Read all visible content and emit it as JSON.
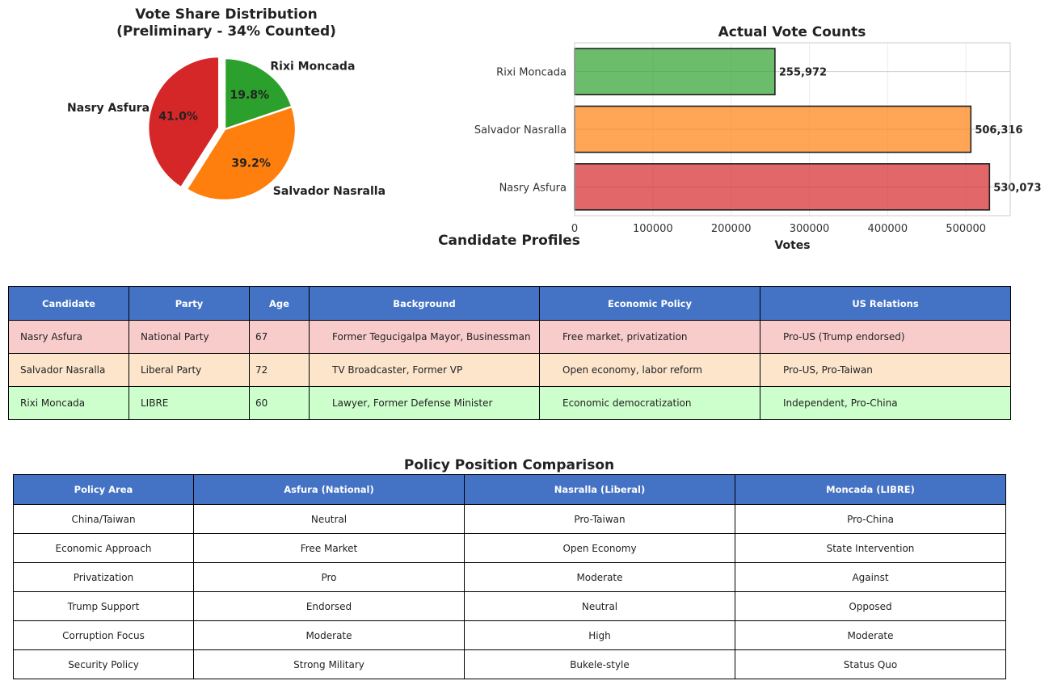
{
  "chart_data": [
    {
      "type": "pie",
      "title": "Vote Share Distribution\n(Preliminary - 34% Counted)",
      "title_lines": [
        "Vote Share Distribution",
        "(Preliminary - 34% Counted)"
      ],
      "labels": [
        "Nasry Asfura",
        "Salvador Nasralla",
        "Rixi Moncada"
      ],
      "values": [
        41.0,
        39.2,
        19.8
      ],
      "value_labels": [
        "41.0%",
        "39.2%",
        "19.8%"
      ],
      "colors": [
        "#d62728",
        "#ff7f0e",
        "#2ca02c"
      ],
      "exploded": [
        "Nasry Asfura"
      ],
      "start_angle": 90
    },
    {
      "type": "bar",
      "orientation": "horizontal",
      "title": "Actual Vote Counts",
      "xlabel": "Votes",
      "ylabel": "",
      "categories": [
        "Nasry Asfura",
        "Salvador Nasralla",
        "Rixi Moncada"
      ],
      "values": [
        530073,
        506316,
        255972
      ],
      "value_labels": [
        "530,073",
        "506,316",
        "255,972"
      ],
      "colors": [
        "#d62728",
        "#ff7f0e",
        "#2ca02c"
      ],
      "xlim": [
        0,
        556577
      ],
      "xticks": [
        0,
        100000,
        200000,
        300000,
        400000,
        500000
      ],
      "xtick_labels": [
        "0",
        "100000",
        "200000",
        "300000",
        "400000",
        "500000"
      ],
      "grid": true
    }
  ],
  "profiles": {
    "title": "Candidate Profiles",
    "header_color": "#4472c4",
    "columns": [
      "Candidate",
      "Party",
      "Age",
      "Background",
      "Economic Policy",
      "US Relations"
    ],
    "row_colors": [
      "#f9cccc",
      "#fde5cc",
      "#ccffcc"
    ],
    "rows": [
      [
        "Nasry Asfura",
        "National Party",
        "67",
        "Former Tegucigalpa Mayor, Businessman",
        "Free market, privatization",
        "Pro-US (Trump endorsed)"
      ],
      [
        "Salvador Nasralla",
        "Liberal Party",
        "72",
        "TV Broadcaster, Former VP",
        "Open economy, labor reform",
        "Pro-US, Pro-Taiwan"
      ],
      [
        "Rixi Moncada",
        "LIBRE",
        "60",
        "Lawyer, Former Defense Minister",
        "Economic democratization",
        "Independent, Pro-China"
      ]
    ]
  },
  "policy": {
    "title": "Policy Position Comparison",
    "columns": [
      "Policy Area",
      "Asfura (National)",
      "Nasralla (Liberal)",
      "Moncada (LIBRE)"
    ],
    "rows": [
      [
        "China/Taiwan",
        "Neutral",
        "Pro-Taiwan",
        "Pro-China"
      ],
      [
        "Economic Approach",
        "Free Market",
        "Open Economy",
        "State Intervention"
      ],
      [
        "Privatization",
        "Pro",
        "Moderate",
        "Against"
      ],
      [
        "Trump Support",
        "Endorsed",
        "Neutral",
        "Opposed"
      ],
      [
        "Corruption Focus",
        "Moderate",
        "High",
        "Moderate"
      ],
      [
        "Security Policy",
        "Strong Military",
        "Bukele-style",
        "Status Quo"
      ]
    ]
  }
}
